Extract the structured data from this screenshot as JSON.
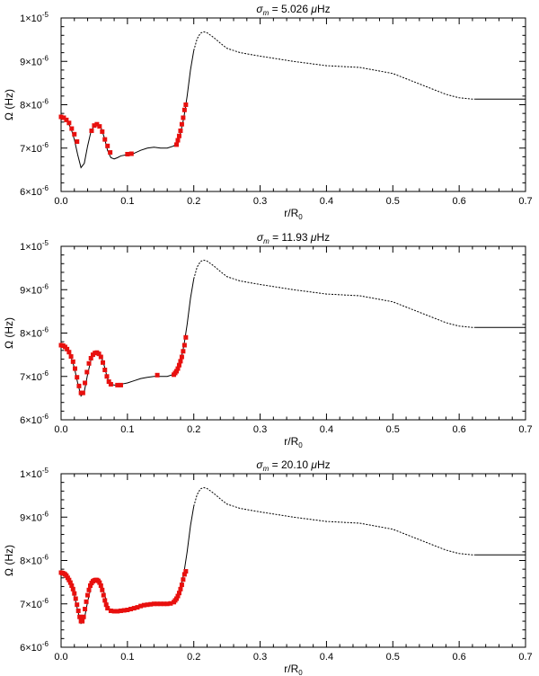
{
  "chart_data": [
    {
      "type": "line",
      "title": "σ_m = 5.026 μHz",
      "title_parts": {
        "sym": "σ",
        "sub": "m",
        "rest": " =  5.026 ",
        "mu": "μ",
        "unit": "Hz"
      },
      "xlabel": "r/R",
      "xlabel_sub": "0",
      "ylabel": "Ω (Hz)",
      "xlim": [
        0,
        0.7
      ],
      "ylim": [
        6e-06,
        1e-05
      ],
      "x_ticks": [
        "0.0",
        "0.1",
        "0.2",
        "0.3",
        "0.4",
        "0.5",
        "0.6",
        "0.7"
      ],
      "y_ticks": [
        {
          "value": 6e-06,
          "mant": "6×10",
          "exp": "-6"
        },
        {
          "value": 7e-06,
          "mant": "7×10",
          "exp": "-6"
        },
        {
          "value": 8e-06,
          "mant": "8×10",
          "exp": "-6"
        },
        {
          "value": 9e-06,
          "mant": "9×10",
          "exp": "-6"
        },
        {
          "value": 1e-05,
          "mant": "1×10",
          "exp": "-5"
        }
      ],
      "curve": [
        [
          0.0,
          7.72
        ],
        [
          0.005,
          7.68
        ],
        [
          0.01,
          7.6
        ],
        [
          0.015,
          7.45
        ],
        [
          0.02,
          7.2
        ],
        [
          0.025,
          6.85
        ],
        [
          0.03,
          6.55
        ],
        [
          0.035,
          6.65
        ],
        [
          0.04,
          7.05
        ],
        [
          0.045,
          7.38
        ],
        [
          0.05,
          7.52
        ],
        [
          0.055,
          7.55
        ],
        [
          0.06,
          7.48
        ],
        [
          0.065,
          7.25
        ],
        [
          0.07,
          6.95
        ],
        [
          0.075,
          6.78
        ],
        [
          0.08,
          6.75
        ],
        [
          0.085,
          6.78
        ],
        [
          0.09,
          6.82
        ],
        [
          0.1,
          6.85
        ],
        [
          0.11,
          6.88
        ],
        [
          0.12,
          6.95
        ],
        [
          0.13,
          7.0
        ],
        [
          0.14,
          7.02
        ],
        [
          0.15,
          7.0
        ],
        [
          0.16,
          7.0
        ],
        [
          0.17,
          7.05
        ],
        [
          0.175,
          7.15
        ],
        [
          0.18,
          7.35
        ],
        [
          0.185,
          7.7
        ],
        [
          0.19,
          8.2
        ],
        [
          0.195,
          8.8
        ],
        [
          0.2,
          9.25
        ],
        [
          0.205,
          9.52
        ],
        [
          0.21,
          9.65
        ],
        [
          0.215,
          9.68
        ],
        [
          0.22,
          9.66
        ],
        [
          0.23,
          9.55
        ],
        [
          0.24,
          9.42
        ],
        [
          0.25,
          9.3
        ],
        [
          0.27,
          9.2
        ],
        [
          0.3,
          9.12
        ],
        [
          0.35,
          9.0
        ],
        [
          0.4,
          8.9
        ],
        [
          0.45,
          8.86
        ],
        [
          0.5,
          8.72
        ],
        [
          0.55,
          8.42
        ],
        [
          0.58,
          8.24
        ],
        [
          0.6,
          8.16
        ],
        [
          0.62,
          8.13
        ],
        [
          0.625,
          8.13
        ],
        [
          0.7,
          8.13
        ]
      ],
      "points": [
        [
          0.0,
          7.72
        ],
        [
          0.004,
          7.7
        ],
        [
          0.008,
          7.65
        ],
        [
          0.012,
          7.58
        ],
        [
          0.016,
          7.45
        ],
        [
          0.02,
          7.32
        ],
        [
          0.024,
          7.15
        ],
        [
          0.046,
          7.4
        ],
        [
          0.05,
          7.52
        ],
        [
          0.054,
          7.55
        ],
        [
          0.058,
          7.5
        ],
        [
          0.062,
          7.38
        ],
        [
          0.066,
          7.2
        ],
        [
          0.07,
          7.05
        ],
        [
          0.074,
          6.9
        ],
        [
          0.1,
          6.86
        ],
        [
          0.106,
          6.87
        ],
        [
          0.174,
          7.08
        ],
        [
          0.176,
          7.18
        ],
        [
          0.178,
          7.28
        ],
        [
          0.18,
          7.4
        ],
        [
          0.182,
          7.55
        ],
        [
          0.184,
          7.7
        ],
        [
          0.186,
          7.88
        ],
        [
          0.188,
          8.0
        ]
      ]
    },
    {
      "type": "line",
      "title": "σ_m = 11.93 μHz",
      "title_parts": {
        "sym": "σ",
        "sub": "m",
        "rest": " =  11.93 ",
        "mu": "μ",
        "unit": "Hz"
      },
      "xlabel": "r/R",
      "xlabel_sub": "0",
      "ylabel": "Ω (Hz)",
      "xlim": [
        0,
        0.7
      ],
      "ylim": [
        6e-06,
        1e-05
      ],
      "x_ticks": [
        "0.0",
        "0.1",
        "0.2",
        "0.3",
        "0.4",
        "0.5",
        "0.6",
        "0.7"
      ],
      "y_ticks": [
        {
          "value": 6e-06,
          "mant": "6×10",
          "exp": "-6"
        },
        {
          "value": 7e-06,
          "mant": "7×10",
          "exp": "-6"
        },
        {
          "value": 8e-06,
          "mant": "8×10",
          "exp": "-6"
        },
        {
          "value": 9e-06,
          "mant": "9×10",
          "exp": "-6"
        },
        {
          "value": 1e-05,
          "mant": "1×10",
          "exp": "-5"
        }
      ],
      "curve": [
        [
          0.0,
          7.72
        ],
        [
          0.005,
          7.68
        ],
        [
          0.01,
          7.6
        ],
        [
          0.015,
          7.45
        ],
        [
          0.02,
          7.2
        ],
        [
          0.025,
          6.85
        ],
        [
          0.03,
          6.55
        ],
        [
          0.035,
          6.65
        ],
        [
          0.04,
          7.05
        ],
        [
          0.045,
          7.38
        ],
        [
          0.05,
          7.52
        ],
        [
          0.055,
          7.55
        ],
        [
          0.06,
          7.48
        ],
        [
          0.065,
          7.25
        ],
        [
          0.07,
          6.95
        ],
        [
          0.075,
          6.82
        ],
        [
          0.08,
          6.8
        ],
        [
          0.085,
          6.8
        ],
        [
          0.09,
          6.82
        ],
        [
          0.1,
          6.85
        ],
        [
          0.11,
          6.9
        ],
        [
          0.12,
          6.95
        ],
        [
          0.13,
          6.98
        ],
        [
          0.14,
          7.0
        ],
        [
          0.15,
          7.0
        ],
        [
          0.16,
          7.0
        ],
        [
          0.17,
          7.05
        ],
        [
          0.175,
          7.15
        ],
        [
          0.18,
          7.35
        ],
        [
          0.185,
          7.7
        ],
        [
          0.19,
          8.2
        ],
        [
          0.195,
          8.8
        ],
        [
          0.2,
          9.25
        ],
        [
          0.205,
          9.52
        ],
        [
          0.21,
          9.65
        ],
        [
          0.215,
          9.68
        ],
        [
          0.22,
          9.66
        ],
        [
          0.23,
          9.55
        ],
        [
          0.24,
          9.42
        ],
        [
          0.25,
          9.3
        ],
        [
          0.27,
          9.2
        ],
        [
          0.3,
          9.12
        ],
        [
          0.35,
          9.0
        ],
        [
          0.4,
          8.9
        ],
        [
          0.45,
          8.86
        ],
        [
          0.5,
          8.72
        ],
        [
          0.55,
          8.42
        ],
        [
          0.58,
          8.24
        ],
        [
          0.6,
          8.16
        ],
        [
          0.62,
          8.13
        ],
        [
          0.625,
          8.13
        ],
        [
          0.7,
          8.13
        ]
      ],
      "points": [
        [
          0.0,
          7.72
        ],
        [
          0.003,
          7.71
        ],
        [
          0.006,
          7.68
        ],
        [
          0.009,
          7.63
        ],
        [
          0.012,
          7.56
        ],
        [
          0.015,
          7.46
        ],
        [
          0.018,
          7.34
        ],
        [
          0.021,
          7.18
        ],
        [
          0.024,
          6.98
        ],
        [
          0.027,
          6.78
        ],
        [
          0.03,
          6.62
        ],
        [
          0.033,
          6.62
        ],
        [
          0.036,
          6.85
        ],
        [
          0.039,
          7.1
        ],
        [
          0.042,
          7.3
        ],
        [
          0.045,
          7.42
        ],
        [
          0.048,
          7.5
        ],
        [
          0.051,
          7.54
        ],
        [
          0.054,
          7.55
        ],
        [
          0.057,
          7.52
        ],
        [
          0.06,
          7.45
        ],
        [
          0.063,
          7.32
        ],
        [
          0.066,
          7.15
        ],
        [
          0.069,
          7.0
        ],
        [
          0.072,
          6.88
        ],
        [
          0.075,
          6.82
        ],
        [
          0.085,
          6.8
        ],
        [
          0.09,
          6.8
        ],
        [
          0.145,
          7.03
        ],
        [
          0.17,
          7.04
        ],
        [
          0.172,
          7.08
        ],
        [
          0.174,
          7.12
        ],
        [
          0.176,
          7.18
        ],
        [
          0.178,
          7.26
        ],
        [
          0.18,
          7.35
        ],
        [
          0.182,
          7.45
        ],
        [
          0.184,
          7.58
        ],
        [
          0.186,
          7.72
        ],
        [
          0.188,
          7.9
        ]
      ]
    },
    {
      "type": "line",
      "title": "σ_m = 20.10 μHz",
      "title_parts": {
        "sym": "σ",
        "sub": "m",
        "rest": " =  20.10 ",
        "mu": "μ",
        "unit": "Hz"
      },
      "xlabel": "r/R",
      "xlabel_sub": "0",
      "ylabel": "Ω (Hz)",
      "xlim": [
        0,
        0.7
      ],
      "ylim": [
        6e-06,
        1e-05
      ],
      "x_ticks": [
        "0.0",
        "0.1",
        "0.2",
        "0.3",
        "0.4",
        "0.5",
        "0.6",
        "0.7"
      ],
      "y_ticks": [
        {
          "value": 6e-06,
          "mant": "6×10",
          "exp": "-6"
        },
        {
          "value": 7e-06,
          "mant": "7×10",
          "exp": "-6"
        },
        {
          "value": 8e-06,
          "mant": "8×10",
          "exp": "-6"
        },
        {
          "value": 9e-06,
          "mant": "9×10",
          "exp": "-6"
        },
        {
          "value": 1e-05,
          "mant": "1×10",
          "exp": "-5"
        }
      ],
      "curve": [
        [
          0.0,
          7.72
        ],
        [
          0.005,
          7.68
        ],
        [
          0.01,
          7.6
        ],
        [
          0.015,
          7.45
        ],
        [
          0.02,
          7.2
        ],
        [
          0.025,
          6.85
        ],
        [
          0.03,
          6.55
        ],
        [
          0.035,
          6.65
        ],
        [
          0.04,
          7.05
        ],
        [
          0.045,
          7.38
        ],
        [
          0.05,
          7.52
        ],
        [
          0.055,
          7.55
        ],
        [
          0.06,
          7.48
        ],
        [
          0.065,
          7.25
        ],
        [
          0.07,
          6.95
        ],
        [
          0.075,
          6.85
        ],
        [
          0.08,
          6.82
        ],
        [
          0.085,
          6.82
        ],
        [
          0.09,
          6.82
        ],
        [
          0.1,
          6.85
        ],
        [
          0.11,
          6.9
        ],
        [
          0.12,
          6.95
        ],
        [
          0.13,
          6.98
        ],
        [
          0.14,
          7.0
        ],
        [
          0.15,
          7.0
        ],
        [
          0.16,
          7.0
        ],
        [
          0.17,
          7.05
        ],
        [
          0.175,
          7.15
        ],
        [
          0.18,
          7.35
        ],
        [
          0.185,
          7.7
        ],
        [
          0.19,
          8.2
        ],
        [
          0.195,
          8.8
        ],
        [
          0.2,
          9.25
        ],
        [
          0.205,
          9.52
        ],
        [
          0.21,
          9.65
        ],
        [
          0.215,
          9.68
        ],
        [
          0.22,
          9.66
        ],
        [
          0.23,
          9.55
        ],
        [
          0.24,
          9.42
        ],
        [
          0.25,
          9.3
        ],
        [
          0.27,
          9.2
        ],
        [
          0.3,
          9.12
        ],
        [
          0.35,
          9.0
        ],
        [
          0.4,
          8.9
        ],
        [
          0.45,
          8.86
        ],
        [
          0.5,
          8.72
        ],
        [
          0.55,
          8.42
        ],
        [
          0.58,
          8.24
        ],
        [
          0.6,
          8.16
        ],
        [
          0.62,
          8.13
        ],
        [
          0.625,
          8.13
        ],
        [
          0.7,
          8.13
        ]
      ],
      "points": [
        [
          0.0,
          7.72
        ],
        [
          0.002,
          7.71
        ],
        [
          0.004,
          7.7
        ],
        [
          0.006,
          7.68
        ],
        [
          0.008,
          7.65
        ],
        [
          0.01,
          7.6
        ],
        [
          0.012,
          7.55
        ],
        [
          0.014,
          7.49
        ],
        [
          0.016,
          7.42
        ],
        [
          0.018,
          7.34
        ],
        [
          0.02,
          7.24
        ],
        [
          0.022,
          7.12
        ],
        [
          0.024,
          6.98
        ],
        [
          0.026,
          6.84
        ],
        [
          0.028,
          6.7
        ],
        [
          0.03,
          6.6
        ],
        [
          0.032,
          6.6
        ],
        [
          0.034,
          6.7
        ],
        [
          0.036,
          6.88
        ],
        [
          0.038,
          7.05
        ],
        [
          0.04,
          7.2
        ],
        [
          0.042,
          7.32
        ],
        [
          0.044,
          7.42
        ],
        [
          0.046,
          7.48
        ],
        [
          0.048,
          7.52
        ],
        [
          0.05,
          7.54
        ],
        [
          0.052,
          7.55
        ],
        [
          0.054,
          7.55
        ],
        [
          0.056,
          7.53
        ],
        [
          0.058,
          7.49
        ],
        [
          0.06,
          7.42
        ],
        [
          0.062,
          7.32
        ],
        [
          0.064,
          7.2
        ],
        [
          0.066,
          7.08
        ],
        [
          0.068,
          6.98
        ],
        [
          0.07,
          6.9
        ],
        [
          0.075,
          6.84
        ],
        [
          0.08,
          6.83
        ],
        [
          0.085,
          6.83
        ],
        [
          0.09,
          6.84
        ],
        [
          0.095,
          6.85
        ],
        [
          0.1,
          6.86
        ],
        [
          0.105,
          6.88
        ],
        [
          0.11,
          6.9
        ],
        [
          0.115,
          6.92
        ],
        [
          0.12,
          6.95
        ],
        [
          0.125,
          6.97
        ],
        [
          0.13,
          6.98
        ],
        [
          0.135,
          6.99
        ],
        [
          0.14,
          7.0
        ],
        [
          0.145,
          7.0
        ],
        [
          0.15,
          7.0
        ],
        [
          0.155,
          7.0
        ],
        [
          0.16,
          7.0
        ],
        [
          0.165,
          7.01
        ],
        [
          0.17,
          7.04
        ],
        [
          0.172,
          7.08
        ],
        [
          0.174,
          7.12
        ],
        [
          0.176,
          7.18
        ],
        [
          0.178,
          7.25
        ],
        [
          0.18,
          7.34
        ],
        [
          0.182,
          7.44
        ],
        [
          0.184,
          7.56
        ],
        [
          0.186,
          7.68
        ],
        [
          0.188,
          7.75
        ]
      ]
    }
  ]
}
